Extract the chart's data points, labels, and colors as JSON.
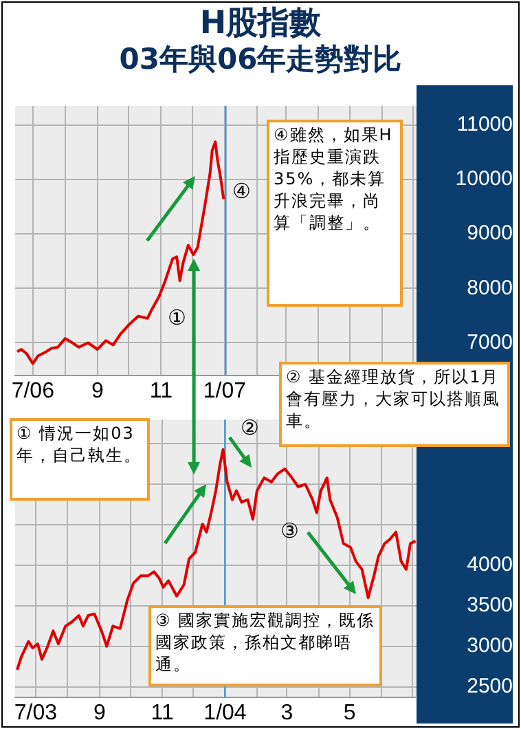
{
  "chart_data": [
    {
      "type": "line",
      "title": "H股指數",
      "subtitle": "03年與06年走勢對比",
      "series": [
        {
          "color": "#e00000",
          "x": [
            "2006-06-16",
            "2006-06-20",
            "2006-06-25",
            "2006-07-01",
            "2006-07-06",
            "2006-07-14",
            "2006-07-19",
            "2006-07-25",
            "2006-08-01",
            "2006-08-08",
            "2006-08-14",
            "2006-08-23",
            "2006-09-01",
            "2006-09-09",
            "2006-09-16",
            "2006-09-23",
            "2006-10-01",
            "2006-10-10",
            "2006-10-19",
            "2006-10-23",
            "2006-10-30",
            "2006-11-05",
            "2006-11-12",
            "2006-11-16",
            "2006-11-19",
            "2006-11-22",
            "2006-11-27",
            "2006-12-02",
            "2006-12-06",
            "2006-12-10",
            "2006-12-13",
            "2006-12-18",
            "2006-12-20",
            "2006-12-23",
            "2006-12-25",
            "2006-12-28",
            "2006-12-31"
          ],
          "values": [
            6840,
            6880,
            6800,
            6620,
            6760,
            6840,
            6900,
            6920,
            7080,
            7000,
            6920,
            7000,
            6880,
            7040,
            6960,
            7160,
            7330,
            7490,
            7450,
            7610,
            7850,
            8140,
            8540,
            8580,
            8140,
            8460,
            8790,
            8620,
            8750,
            9190,
            9520,
            10120,
            10530,
            10690,
            10370,
            10040,
            9640
          ]
        }
      ],
      "xlim": [
        "2006-06-14",
        "2007-07-04"
      ],
      "xticks": [
        {
          "value": "2006-07-01",
          "label": "7/06"
        },
        {
          "value": "2006-08-01",
          "label": null
        },
        {
          "value": "2006-09-01",
          "label": "9"
        },
        {
          "value": "2006-10-01",
          "label": null
        },
        {
          "value": "2006-11-01",
          "label": "11"
        },
        {
          "value": "2006-12-01",
          "label": null
        },
        {
          "value": "2007-01-01",
          "label": "1/07"
        },
        {
          "value": "2007-02-01",
          "label": null
        },
        {
          "value": "2007-03-01",
          "label": null
        },
        {
          "value": "2007-04-01",
          "label": null
        },
        {
          "value": "2007-05-01",
          "label": null
        },
        {
          "value": "2007-06-01",
          "label": null
        },
        {
          "value": "2007-07-01",
          "label": null
        }
      ],
      "ylim": [
        6400,
        11350
      ],
      "yticks": [
        7000,
        8000,
        9000,
        10000,
        11000
      ],
      "ref_lines": [
        {
          "axis": "x",
          "value": "2007-01-02",
          "color": "#3399dd"
        }
      ],
      "annotations": [
        "④雖然，如果H指歷史重演跌35%，都未算升浪完畢，尚算「調整」。",
        "② 基金經理放貨，所以1月會有壓力，大家可以搭順風車。",
        "④",
        "①"
      ],
      "grid": true,
      "legend": false
    },
    {
      "type": "line",
      "series": [
        {
          "color": "#e00000",
          "x": [
            "2003-06-13",
            "2003-06-17",
            "2003-06-24",
            "2003-06-28",
            "2003-07-03",
            "2003-07-07",
            "2003-07-12",
            "2003-07-18",
            "2003-07-23",
            "2003-07-30",
            "2003-08-05",
            "2003-08-12",
            "2003-08-16",
            "2003-08-21",
            "2003-08-27",
            "2003-09-03",
            "2003-09-08",
            "2003-09-14",
            "2003-09-21",
            "2003-09-28",
            "2003-10-04",
            "2003-10-11",
            "2003-10-18",
            "2003-10-24",
            "2003-10-29",
            "2003-11-02",
            "2003-11-07",
            "2003-11-15",
            "2003-11-22",
            "2003-11-27",
            "2003-12-03",
            "2003-12-10",
            "2003-12-14",
            "2003-12-19",
            "2003-12-23",
            "2003-12-27",
            "2003-12-30",
            "2004-01-03",
            "2004-01-08",
            "2004-01-12",
            "2004-01-17",
            "2004-01-23",
            "2004-01-28",
            "2004-02-01",
            "2004-02-08",
            "2004-02-15",
            "2004-02-21",
            "2004-02-28",
            "2004-03-06",
            "2004-03-12",
            "2004-03-19",
            "2004-03-26",
            "2004-03-30",
            "2004-04-03",
            "2004-04-09",
            "2004-04-12",
            "2004-04-19",
            "2004-04-25",
            "2004-05-02",
            "2004-05-07",
            "2004-05-13",
            "2004-05-19",
            "2004-05-25",
            "2004-05-29",
            "2004-06-04",
            "2004-06-09",
            "2004-06-15",
            "2004-06-20",
            "2004-06-25",
            "2004-06-29",
            "2004-07-04"
          ],
          "values": [
            2710,
            2870,
            3060,
            2980,
            3030,
            2840,
            2980,
            3190,
            3030,
            3250,
            3300,
            3380,
            3250,
            3380,
            3400,
            3190,
            3000,
            3250,
            3220,
            3570,
            3780,
            3870,
            3870,
            3920,
            3840,
            3730,
            3810,
            3620,
            3760,
            4080,
            4160,
            4510,
            4410,
            4680,
            4920,
            5240,
            5430,
            5030,
            4810,
            4920,
            4780,
            4810,
            4570,
            4920,
            5080,
            5030,
            5130,
            5190,
            5080,
            4970,
            5000,
            4810,
            4650,
            4920,
            5080,
            4810,
            4590,
            4270,
            4220,
            4050,
            3950,
            3600,
            3890,
            4110,
            4270,
            4320,
            4410,
            4050,
            3950,
            4270,
            4300
          ]
        }
      ],
      "xlim": [
        "2003-06-11",
        "2004-07-05"
      ],
      "xticks": [
        {
          "value": "2003-07-01",
          "label": "7/03"
        },
        {
          "value": "2003-08-01",
          "label": null
        },
        {
          "value": "2003-09-01",
          "label": "9"
        },
        {
          "value": "2003-10-01",
          "label": null
        },
        {
          "value": "2003-11-01",
          "label": "11"
        },
        {
          "value": "2003-12-01",
          "label": null
        },
        {
          "value": "2004-01-01",
          "label": "1/04"
        },
        {
          "value": "2004-02-01",
          "label": null
        },
        {
          "value": "2004-03-01",
          "label": "3"
        },
        {
          "value": "2004-04-01",
          "label": null
        },
        {
          "value": "2004-05-01",
          "label": "5"
        },
        {
          "value": "2004-06-01",
          "label": null
        },
        {
          "value": "2004-07-01",
          "label": null
        }
      ],
      "ylim": [
        2370,
        5800
      ],
      "yticks": [
        2500,
        3000,
        3500,
        4000,
        {
          "value": 4500,
          "label": null
        },
        {
          "value": 5000,
          "label": null
        },
        {
          "value": 5500,
          "label": null
        }
      ],
      "ref_lines": [
        {
          "axis": "x",
          "value": "2004-01-01",
          "color": "#3399dd"
        }
      ],
      "annotations": [
        "① 情況一如03年，自己執生。",
        "③ 國家實施宏觀調控，既係國家政策，孫柏文都睇唔通。",
        "②",
        "③"
      ],
      "grid": true,
      "legend": false
    }
  ]
}
